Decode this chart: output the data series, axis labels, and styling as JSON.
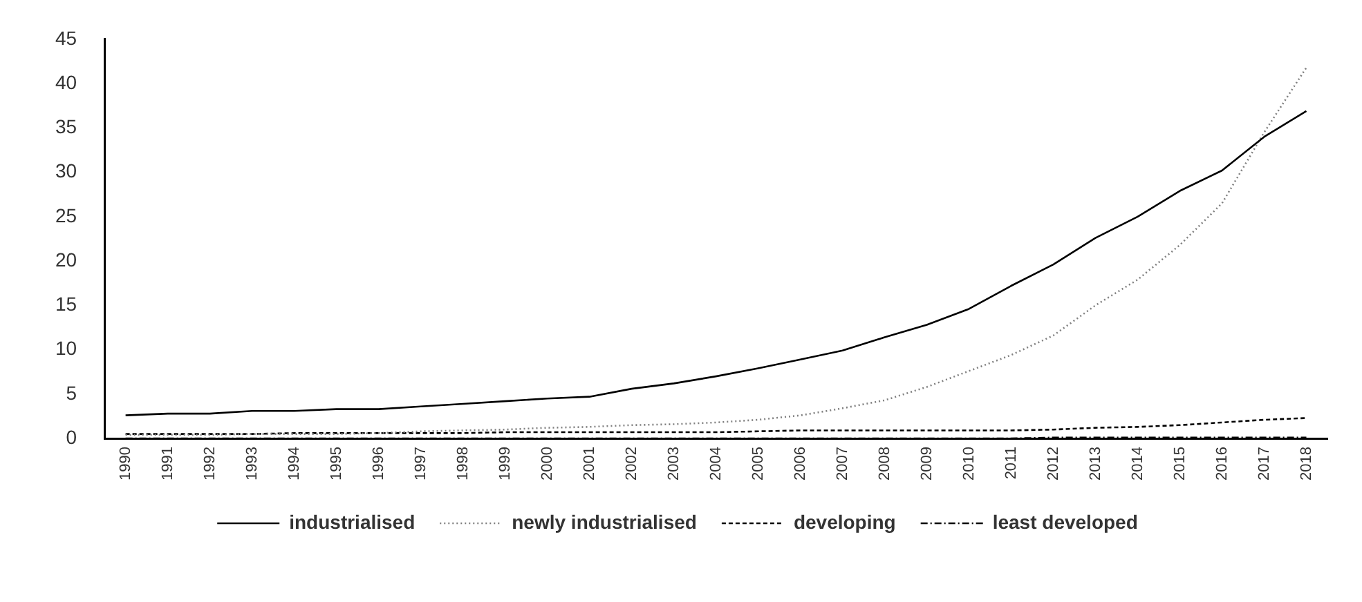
{
  "chart_data": {
    "type": "line",
    "categories": [
      "1990",
      "1991",
      "1992",
      "1993",
      "1994",
      "1995",
      "1996",
      "1997",
      "1998",
      "1999",
      "2000",
      "2001",
      "2002",
      "2003",
      "2004",
      "2005",
      "2006",
      "2007",
      "2008",
      "2009",
      "2010",
      "2011",
      "2012",
      "2013",
      "2014",
      "2015",
      "2016",
      "2017",
      "2018"
    ],
    "series": [
      {
        "name": "industrialised",
        "color": "#000000",
        "line_style": "solid",
        "values": [
          2.6,
          2.8,
          2.8,
          3.1,
          3.1,
          3.3,
          3.3,
          3.6,
          3.9,
          4.2,
          4.5,
          4.7,
          5.6,
          6.2,
          7.0,
          7.9,
          8.9,
          9.9,
          11.4,
          12.8,
          14.6,
          17.2,
          19.6,
          22.6,
          25.0,
          27.9,
          30.2,
          34.0,
          36.9
        ]
      },
      {
        "name": "newly industrialised",
        "color": "#808080",
        "line_style": "dotted",
        "values": [
          0.4,
          0.4,
          0.4,
          0.5,
          0.5,
          0.5,
          0.6,
          0.8,
          0.9,
          1.0,
          1.2,
          1.3,
          1.5,
          1.6,
          1.8,
          2.1,
          2.6,
          3.4,
          4.3,
          5.8,
          7.6,
          9.4,
          11.6,
          15.0,
          17.9,
          21.8,
          26.5,
          34.5,
          41.8
        ]
      },
      {
        "name": "developing",
        "color": "#000000",
        "line_style": "dashed",
        "values": [
          0.5,
          0.5,
          0.5,
          0.5,
          0.6,
          0.6,
          0.6,
          0.6,
          0.6,
          0.7,
          0.7,
          0.7,
          0.7,
          0.7,
          0.7,
          0.8,
          0.9,
          0.9,
          0.9,
          0.9,
          0.9,
          0.9,
          1.0,
          1.2,
          1.3,
          1.5,
          1.8,
          2.1,
          2.3
        ]
      },
      {
        "name": "least developed",
        "color": "#000000",
        "line_style": "dashdot",
        "values": [
          0.0,
          0.0,
          0.0,
          0.0,
          0.0,
          0.0,
          0.0,
          0.0,
          0.0,
          0.0,
          0.0,
          0.0,
          0.0,
          0.0,
          0.0,
          0.0,
          0.0,
          0.0,
          0.0,
          0.0,
          0.0,
          0.0,
          0.1,
          0.1,
          0.1,
          0.1,
          0.1,
          0.1,
          0.1
        ]
      }
    ],
    "ylim": [
      0,
      45
    ],
    "yticks": [
      0,
      5,
      10,
      15,
      20,
      25,
      30,
      35,
      40,
      45
    ],
    "grid": false,
    "legend": "bottom",
    "marker": "none"
  }
}
